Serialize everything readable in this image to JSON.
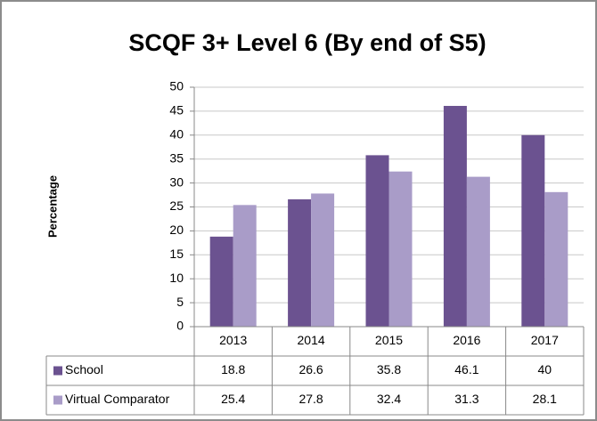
{
  "chart_data": {
    "type": "bar",
    "title": "SCQF 3+ Level 6 (By end of S5)",
    "y_label": "Percentage",
    "categories": [
      "2013",
      "2014",
      "2015",
      "2016",
      "2017"
    ],
    "series": [
      {
        "name": "School",
        "color": "#6b5290",
        "values": [
          18.8,
          26.6,
          35.8,
          46.1,
          40
        ]
      },
      {
        "name": "Virtual Comparator",
        "color": "#a99cc8",
        "values": [
          25.4,
          27.8,
          32.4,
          31.3,
          28.1
        ]
      }
    ],
    "ylim": [
      0,
      50
    ],
    "yticks": [
      0,
      5,
      10,
      15,
      20,
      25,
      30,
      35,
      40,
      45,
      50
    ],
    "grid": true,
    "data_table": true
  }
}
